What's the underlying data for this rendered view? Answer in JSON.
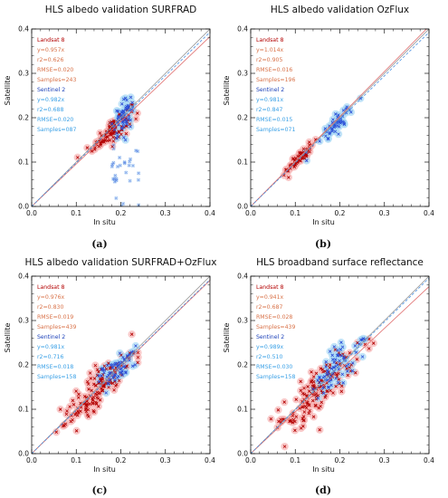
{
  "colors": {
    "landsat_marker": "#b30000",
    "landsat_shade": "#f6b3b3",
    "landsat_fit": "#e07070",
    "landsat_text_head": "#b30000",
    "landsat_text": "#d9734a",
    "sentinel_marker": "#2b4fd6",
    "sentinel_shade": "#a8d8f5",
    "sentinel_fit": "#4a90e2",
    "sentinel_text_head": "#1a3fb8",
    "sentinel_text": "#3aa0e6",
    "one_to_one": "#9a9a9a"
  },
  "chart_data": [
    {
      "type": "scatter",
      "panel_letter": "(a)",
      "title": "HLS albedo validation SURFRAD",
      "xlabel": "In situ",
      "ylabel": "Satellite",
      "xlim": [
        0.0,
        0.4
      ],
      "ylim": [
        0.0,
        0.4
      ],
      "xticks": [
        "0.0",
        "0.1",
        "0.2",
        "0.3",
        "0.4"
      ],
      "yticks": [
        "0.0",
        "0.1",
        "0.2",
        "0.3",
        "0.4"
      ],
      "stats_text": [
        "Landsat 8",
        "y=0.957x",
        "r2=0.626",
        "RMSE=0.020",
        "Samples=243",
        "Sentinel 2",
        "y=0.982x",
        "r2=0.688",
        "RMSE=0.020",
        "Samples=087"
      ],
      "series": [
        {
          "name": "Landsat 8",
          "slope": 0.957,
          "cluster": {
            "cx": 0.18,
            "cy": 0.172,
            "sx": 0.022,
            "sy": 0.022,
            "n": 110
          }
        },
        {
          "name": "Sentinel 2",
          "slope": 0.982,
          "cluster": {
            "cx": 0.205,
            "cy": 0.2,
            "sx": 0.012,
            "sy": 0.03,
            "n": 60
          }
        }
      ],
      "outliers": {
        "x_from": 0.18,
        "x_to": 0.24,
        "y_from": 0.0,
        "y_to": 0.14,
        "n": 30
      }
    },
    {
      "type": "scatter",
      "panel_letter": "(b)",
      "title": "HLS albedo validation OzFlux",
      "xlabel": "In situ",
      "ylabel": "Satellite",
      "xlim": [
        0.0,
        0.4
      ],
      "ylim": [
        0.0,
        0.4
      ],
      "xticks": [
        "0.0",
        "0.1",
        "0.2",
        "0.3",
        "0.4"
      ],
      "yticks": [
        "0.0",
        "0.1",
        "0.2",
        "0.3",
        "0.4"
      ],
      "stats_text": [
        "Landsat 8",
        "y=1.014x",
        "r2=0.905",
        "RMSE=0.016",
        "Samples=196",
        "Sentinel 2",
        "y=0.981x",
        "r2=0.847",
        "RMSE=0.015",
        "Samples=071"
      ],
      "series": [
        {
          "name": "Landsat 8",
          "slope": 1.014,
          "cluster": {
            "cx": 0.11,
            "cy": 0.11,
            "sx": 0.014,
            "sy": 0.012,
            "n": 70
          }
        },
        {
          "name": "Sentinel 2",
          "slope": 0.981,
          "cluster": {
            "cx": 0.19,
            "cy": 0.185,
            "sx": 0.02,
            "sy": 0.018,
            "n": 55
          }
        }
      ]
    },
    {
      "type": "scatter",
      "panel_letter": "(c)",
      "title": "HLS albedo validation SURFRAD+OzFlux",
      "xlabel": "In situ",
      "ylabel": "Satellite",
      "xlim": [
        0.0,
        0.4
      ],
      "ylim": [
        0.0,
        0.4
      ],
      "xticks": [
        "0.0",
        "0.1",
        "0.2",
        "0.3",
        "0.4"
      ],
      "yticks": [
        "0.0",
        "0.1",
        "0.2",
        "0.3",
        "0.4"
      ],
      "stats_text": [
        "Landsat 8",
        "y=0.976x",
        "r2=0.830",
        "RMSE=0.019",
        "Samples=439",
        "Sentinel 2",
        "y=0.981x",
        "r2=0.716",
        "RMSE=0.018",
        "Samples=158"
      ],
      "series": [
        {
          "name": "Landsat 8",
          "slope": 0.976,
          "cluster": {
            "cx": 0.15,
            "cy": 0.145,
            "sx": 0.04,
            "sy": 0.038,
            "n": 150
          }
        },
        {
          "name": "Sentinel 2",
          "slope": 0.981,
          "cluster": {
            "cx": 0.19,
            "cy": 0.19,
            "sx": 0.022,
            "sy": 0.025,
            "n": 70
          }
        }
      ]
    },
    {
      "type": "scatter",
      "panel_letter": "(d)",
      "title": "HLS broadband surface reflectance",
      "xlabel": "In situ",
      "ylabel": "Satellite",
      "xlim": [
        0.0,
        0.4
      ],
      "ylim": [
        0.0,
        0.4
      ],
      "xticks": [
        "0.0",
        "0.1",
        "0.2",
        "0.3",
        "0.4"
      ],
      "yticks": [
        "0.0",
        "0.1",
        "0.2",
        "0.3",
        "0.4"
      ],
      "stats_text": [
        "Landsat 8",
        "y=0.941x",
        "r2=0.687",
        "RMSE=0.028",
        "Samples=439",
        "Sentinel 2",
        "y=0.989x",
        "r2=0.510",
        "RMSE=0.030",
        "Samples=158"
      ],
      "series": [
        {
          "name": "Landsat 8",
          "slope": 0.941,
          "cluster": {
            "cx": 0.15,
            "cy": 0.14,
            "sx": 0.045,
            "sy": 0.045,
            "n": 150
          }
        },
        {
          "name": "Sentinel 2",
          "slope": 0.989,
          "cluster": {
            "cx": 0.19,
            "cy": 0.19,
            "sx": 0.025,
            "sy": 0.035,
            "n": 70
          }
        }
      ]
    }
  ]
}
